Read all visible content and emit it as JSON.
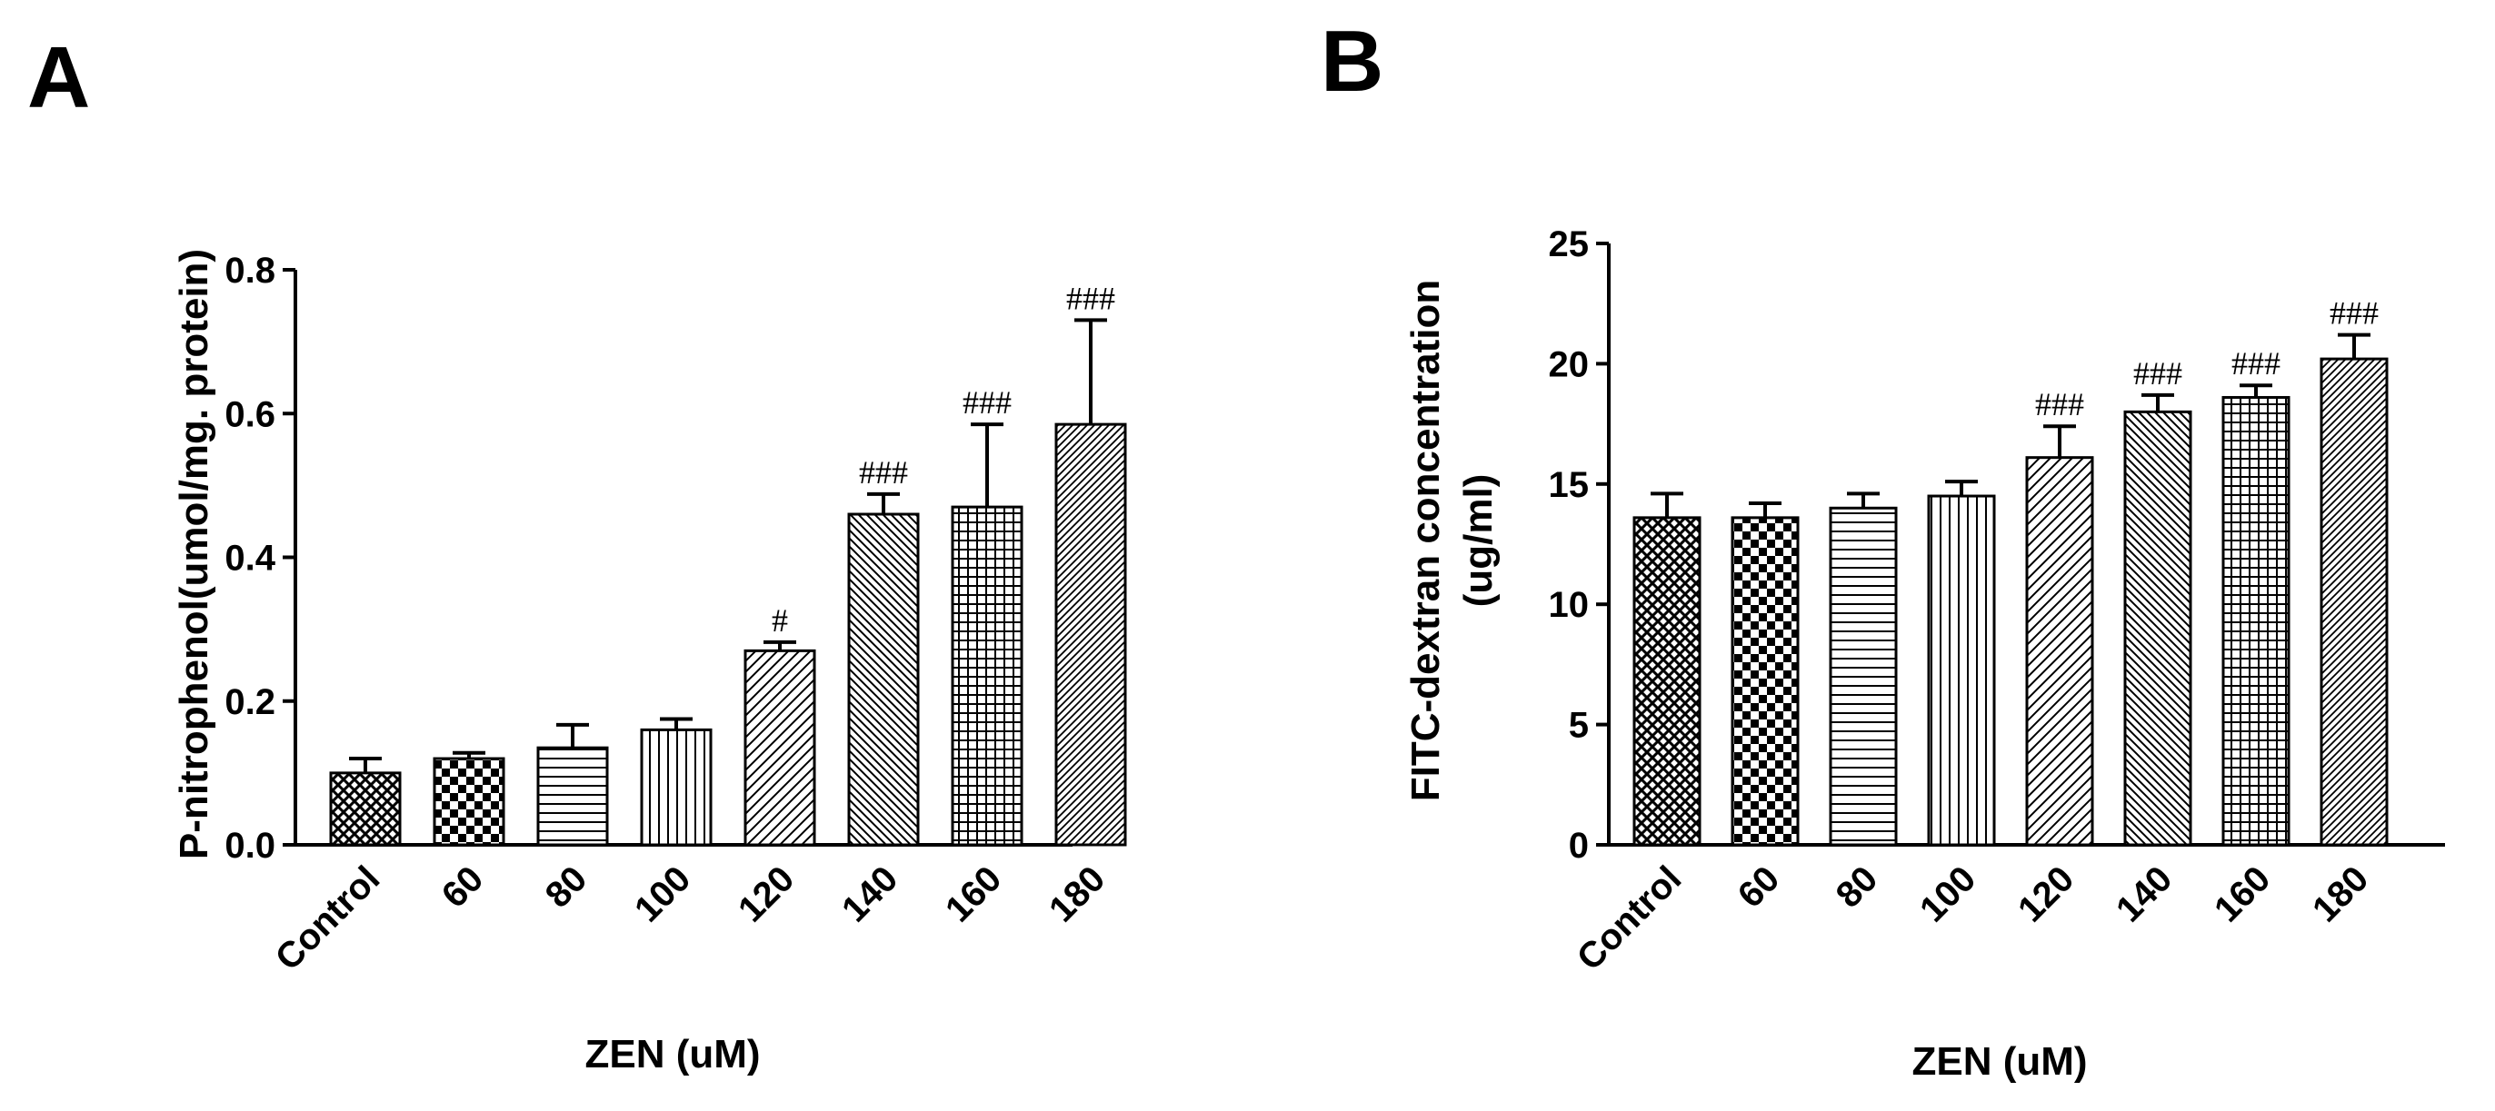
{
  "panels": {
    "A": {
      "letter": "A"
    },
    "B": {
      "letter": "B"
    }
  },
  "chart_data": [
    {
      "panel": "A",
      "type": "bar",
      "xlabel": "ZEN (uM)",
      "ylabel": "P-nitrophenol(umol/mg. protein)",
      "ylim": [
        0,
        0.8
      ],
      "yticks": [
        0.0,
        0.2,
        0.4,
        0.6,
        0.8
      ],
      "ytick_labels": [
        "0.0",
        "0.2",
        "0.4",
        "0.6",
        "0.8"
      ],
      "categories": [
        "Control",
        "60",
        "80",
        "100",
        "120",
        "140",
        "160",
        "180"
      ],
      "values": [
        0.1,
        0.12,
        0.135,
        0.16,
        0.27,
        0.46,
        0.47,
        0.585
      ],
      "errors": [
        0.02,
        0.008,
        0.032,
        0.015,
        0.012,
        0.028,
        0.115,
        0.145
      ],
      "significance": [
        "",
        "",
        "",
        "",
        "#",
        "###",
        "###",
        "###"
      ],
      "patterns": [
        "crosshatch",
        "checker",
        "hlines",
        "vlines",
        "diag",
        "diag-dense",
        "grid",
        "diag-fine"
      ]
    },
    {
      "panel": "B",
      "type": "bar",
      "xlabel": "ZEN (uM)",
      "ylabel_line1": "FITC-dextran concentration",
      "ylabel_line2": "(ug/ml)",
      "ylim": [
        0,
        25
      ],
      "yticks": [
        0,
        5,
        10,
        15,
        20,
        25
      ],
      "ytick_labels": [
        "0",
        "5",
        "10",
        "15",
        "20",
        "25"
      ],
      "categories": [
        "Control",
        "60",
        "80",
        "100",
        "120",
        "140",
        "160",
        "180"
      ],
      "values": [
        13.6,
        13.6,
        14.0,
        14.5,
        16.1,
        18.0,
        18.6,
        20.2
      ],
      "errors": [
        1.0,
        0.6,
        0.6,
        0.6,
        1.3,
        0.7,
        0.5,
        1.0
      ],
      "significance": [
        "",
        "",
        "",
        "",
        "###",
        "###",
        "###",
        "###"
      ],
      "patterns": [
        "crosshatch",
        "checker",
        "hlines",
        "vlines",
        "diag",
        "diag-dense",
        "grid",
        "diag-fine"
      ]
    }
  ]
}
